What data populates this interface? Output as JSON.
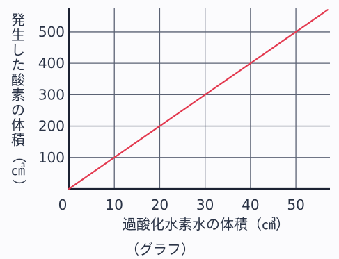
{
  "chart_data": {
    "type": "line",
    "title": "",
    "caption": "（グラフ）",
    "xlabel": "過酸化水素水の体積（㎤）",
    "ylabel": "発生した酸素の体積（㎤）",
    "ylabel_chars": [
      "発",
      "生",
      "し",
      "た",
      "酸",
      "素",
      "の",
      "体",
      "積",
      "（",
      "㎤",
      "）"
    ],
    "xlim": [
      0,
      57.5
    ],
    "ylim": [
      0,
      575
    ],
    "x_ticks": [
      10,
      20,
      30,
      40,
      50
    ],
    "y_ticks": [
      100,
      200,
      300,
      400,
      500
    ],
    "origin_label": "0",
    "grid": true,
    "series": [
      {
        "x": [
          0,
          10,
          20,
          30,
          40,
          50,
          57
        ],
        "y": [
          0,
          100,
          200,
          300,
          400,
          500,
          570
        ],
        "color": "#e3394f"
      }
    ],
    "colors": {
      "grid": "#5b6274",
      "axis": "#1c2233",
      "line": "#e3394f",
      "text": "#2a3346"
    }
  }
}
